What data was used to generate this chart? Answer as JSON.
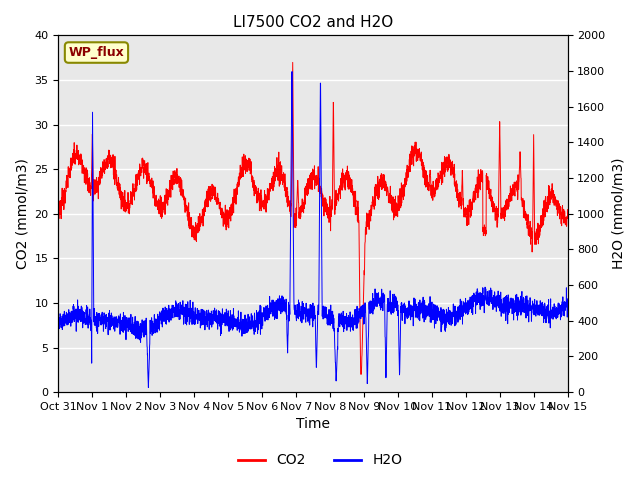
{
  "title": "LI7500 CO2 and H2O",
  "xlabel": "Time",
  "ylabel_left": "CO2 (mmol/m3)",
  "ylabel_right": "H2O (mmol/m3)",
  "ylim_left": [
    0,
    40
  ],
  "ylim_right": [
    0,
    2000
  ],
  "yticks_left": [
    0,
    5,
    10,
    15,
    20,
    25,
    30,
    35,
    40
  ],
  "yticks_right": [
    0,
    200,
    400,
    600,
    800,
    1000,
    1200,
    1400,
    1600,
    1800,
    2000
  ],
  "background_color": "#e8e8e8",
  "site_label": "WP_flux",
  "site_label_bg": "#ffffcc",
  "site_label_border": "#888800",
  "line_co2_color": "red",
  "line_h2o_color": "blue",
  "legend_co2": "CO2",
  "legend_h2o": "H2O",
  "title_fontsize": 11,
  "axis_fontsize": 10,
  "tick_fontsize": 8,
  "n_points": 3000
}
